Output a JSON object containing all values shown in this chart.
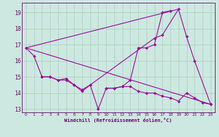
{
  "background_color": "#cce8e0",
  "grid_color": "#aaccbb",
  "line_color": "#990099",
  "xlim": [
    -0.5,
    23.5
  ],
  "ylim": [
    12.8,
    19.6
  ],
  "yticks": [
    13,
    14,
    15,
    16,
    17,
    18,
    19
  ],
  "xticks": [
    0,
    1,
    2,
    3,
    4,
    5,
    6,
    7,
    8,
    9,
    10,
    11,
    12,
    13,
    14,
    15,
    16,
    17,
    18,
    19,
    20,
    21,
    22,
    23
  ],
  "xlabel": "Windchill (Refroidissement éolien,°C)",
  "s1x": [
    0,
    1,
    2,
    3,
    4,
    5,
    6,
    7,
    8,
    9,
    10,
    11,
    12,
    13,
    14,
    15,
    16,
    17,
    18
  ],
  "s1y": [
    16.8,
    16.3,
    15.0,
    15.0,
    14.8,
    14.8,
    14.5,
    14.2,
    14.5,
    13.0,
    14.3,
    14.3,
    14.4,
    14.8,
    16.8,
    16.8,
    17.0,
    19.0,
    19.1
  ],
  "s2x": [
    2,
    3,
    4,
    5,
    6,
    7,
    8,
    16,
    17,
    19,
    20,
    21,
    23
  ],
  "s2y": [
    15.0,
    15.0,
    14.8,
    14.9,
    14.5,
    14.1,
    14.5,
    17.4,
    17.6,
    19.2,
    17.5,
    16.0,
    13.3
  ],
  "s3x": [
    10,
    11,
    12,
    13,
    14,
    15,
    16,
    17,
    18,
    19,
    20,
    21,
    22,
    23
  ],
  "s3y": [
    14.3,
    14.3,
    14.4,
    14.4,
    14.1,
    14.0,
    14.0,
    13.8,
    13.7,
    13.5,
    14.0,
    13.7,
    13.4,
    13.3
  ],
  "trend1x": [
    0,
    19
  ],
  "trend1y": [
    16.8,
    19.2
  ],
  "trend2x": [
    0,
    23
  ],
  "trend2y": [
    16.8,
    13.3
  ]
}
